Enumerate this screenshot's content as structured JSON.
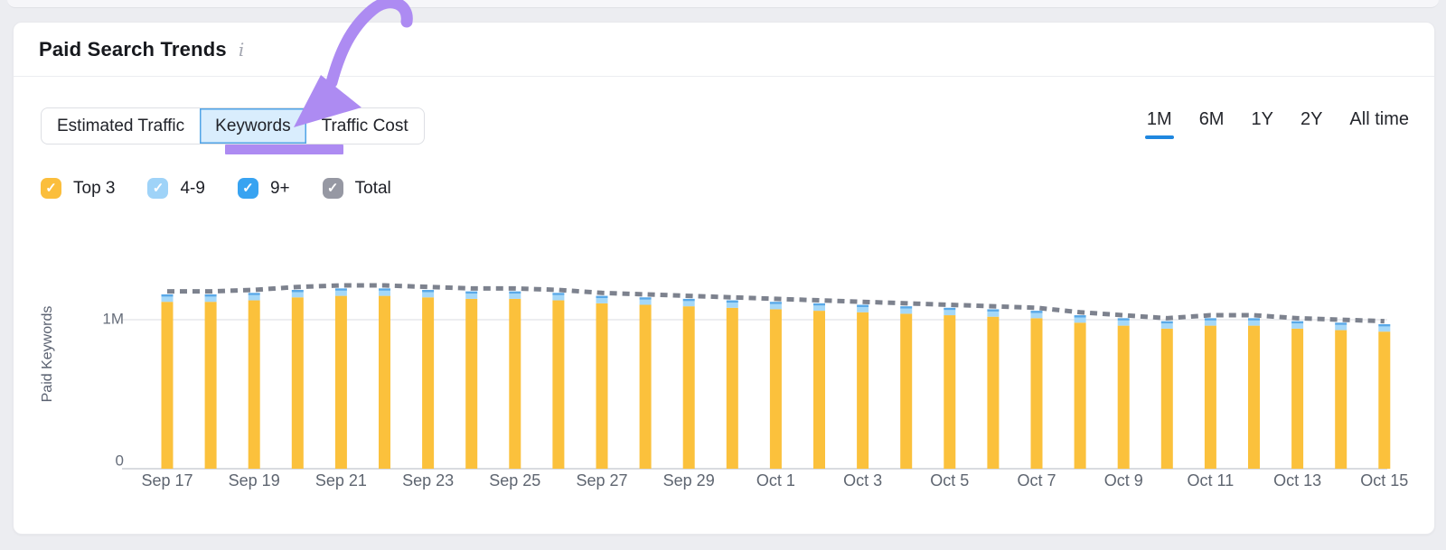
{
  "header": {
    "title": "Paid Search Trends",
    "info_icon": "i"
  },
  "tabs": {
    "items": [
      "Estimated Traffic",
      "Keywords",
      "Traffic Cost"
    ],
    "active": "Keywords"
  },
  "time_ranges": {
    "items": [
      "1M",
      "6M",
      "1Y",
      "2Y",
      "All time"
    ],
    "active": "1M",
    "active_underline_color": "#1F87DF"
  },
  "filters": {
    "check_glyph": "✓",
    "items": [
      {
        "label": "Top 3",
        "color": "#FBBE3C",
        "checked": true
      },
      {
        "label": "4-9",
        "color": "#9FD3F8",
        "checked": true
      },
      {
        "label": "9+",
        "color": "#38A3F1",
        "checked": true
      },
      {
        "label": "Total",
        "color": "#9698A3",
        "checked": true
      }
    ]
  },
  "chart_data": {
    "type": "bar",
    "stacked": true,
    "title": "Paid Search Trends — Keywords",
    "ylabel": "Paid Keywords",
    "xlabel": "",
    "unit": "millions of paid keywords",
    "ylim_millions": [
      0,
      1.35
    ],
    "grid": true,
    "yticks": [
      {
        "label": "1M",
        "value": 1
      },
      {
        "label": "0",
        "value": 0
      }
    ],
    "x_tick_step": 2,
    "categories": [
      "Sep 17",
      "Sep 18",
      "Sep 19",
      "Sep 20",
      "Sep 21",
      "Sep 22",
      "Sep 23",
      "Sep 24",
      "Sep 25",
      "Sep 26",
      "Sep 27",
      "Sep 28",
      "Sep 29",
      "Sep 30",
      "Oct 1",
      "Oct 2",
      "Oct 3",
      "Oct 4",
      "Oct 5",
      "Oct 6",
      "Oct 7",
      "Oct 8",
      "Oct 9",
      "Oct 10",
      "Oct 11",
      "Oct 12",
      "Oct 13",
      "Oct 14",
      "Oct 15"
    ],
    "series": [
      {
        "name": "Top 3",
        "type": "bar",
        "color": "#FBC13C",
        "values": [
          1.12,
          1.12,
          1.13,
          1.15,
          1.16,
          1.16,
          1.15,
          1.14,
          1.14,
          1.13,
          1.11,
          1.1,
          1.09,
          1.08,
          1.07,
          1.06,
          1.05,
          1.04,
          1.03,
          1.02,
          1.01,
          0.98,
          0.96,
          0.94,
          0.96,
          0.96,
          0.94,
          0.93,
          0.92
        ]
      },
      {
        "name": "4-9",
        "type": "bar",
        "color": "#A5D8F8",
        "values": [
          0.035,
          0.035,
          0.035,
          0.035,
          0.035,
          0.035,
          0.035,
          0.035,
          0.035,
          0.035,
          0.035,
          0.035,
          0.035,
          0.035,
          0.035,
          0.035,
          0.035,
          0.035,
          0.035,
          0.035,
          0.035,
          0.035,
          0.035,
          0.035,
          0.035,
          0.035,
          0.035,
          0.035,
          0.035
        ]
      },
      {
        "name": "9+",
        "type": "bar",
        "color": "#59A9E8",
        "values": [
          0.015,
          0.015,
          0.015,
          0.015,
          0.015,
          0.015,
          0.015,
          0.015,
          0.015,
          0.015,
          0.015,
          0.015,
          0.015,
          0.015,
          0.015,
          0.015,
          0.015,
          0.015,
          0.015,
          0.015,
          0.015,
          0.015,
          0.015,
          0.015,
          0.015,
          0.015,
          0.015,
          0.015,
          0.015
        ]
      },
      {
        "name": "Total",
        "type": "dashed-line",
        "color": "#7D828E",
        "values": [
          1.19,
          1.19,
          1.2,
          1.22,
          1.23,
          1.23,
          1.22,
          1.21,
          1.21,
          1.2,
          1.18,
          1.17,
          1.16,
          1.15,
          1.14,
          1.13,
          1.12,
          1.11,
          1.1,
          1.09,
          1.08,
          1.05,
          1.03,
          1.01,
          1.03,
          1.03,
          1.01,
          1.0,
          0.99
        ]
      }
    ],
    "legend_position": "top-left"
  },
  "annotation": {
    "color": "#AD8BF2"
  }
}
